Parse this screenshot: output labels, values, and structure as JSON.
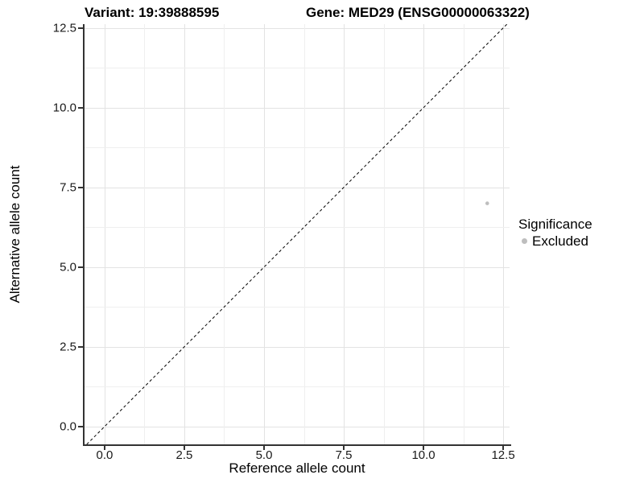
{
  "chart_data": {
    "type": "scatter",
    "titles": [
      {
        "id": "variant",
        "text": "Variant: 19:39888595"
      },
      {
        "id": "gene",
        "text": "Gene: MED29 (ENSG00000063322)"
      }
    ],
    "xlabel": "Reference allele count",
    "ylabel": "Alternative allele count",
    "xticks": {
      "values": [
        0,
        2.5,
        5,
        7.5,
        10,
        12.5
      ],
      "labels": [
        "0.0",
        "2.5",
        "5.0",
        "7.5",
        "10.0",
        "12.5"
      ]
    },
    "yticks": {
      "values": [
        0,
        2.5,
        5,
        7.5,
        10,
        12.5
      ],
      "labels": [
        "0.0",
        "2.5",
        "5.0",
        "7.5",
        "10.0",
        "12.5"
      ]
    },
    "xlim": [
      -0.63,
      12.7
    ],
    "ylim": [
      -0.56,
      12.62
    ],
    "grid": {
      "major": true,
      "minor": true,
      "major_color": "#e3e3e3",
      "minor_color": "#efefef"
    },
    "identity_line": {
      "style": "dashed",
      "equation": "y = x",
      "color": "#000000"
    },
    "series": [
      {
        "name": "Excluded",
        "color": "#bebebe",
        "point_radius": 2.3,
        "points": [
          {
            "x": 12,
            "y": 7
          }
        ]
      }
    ],
    "legend": {
      "title": "Significance",
      "position": "right",
      "items": [
        {
          "label": "Excluded",
          "color": "#bebebe",
          "shape": "circle"
        }
      ]
    },
    "panel_background": "#ffffff",
    "axis_color": "#333333"
  }
}
